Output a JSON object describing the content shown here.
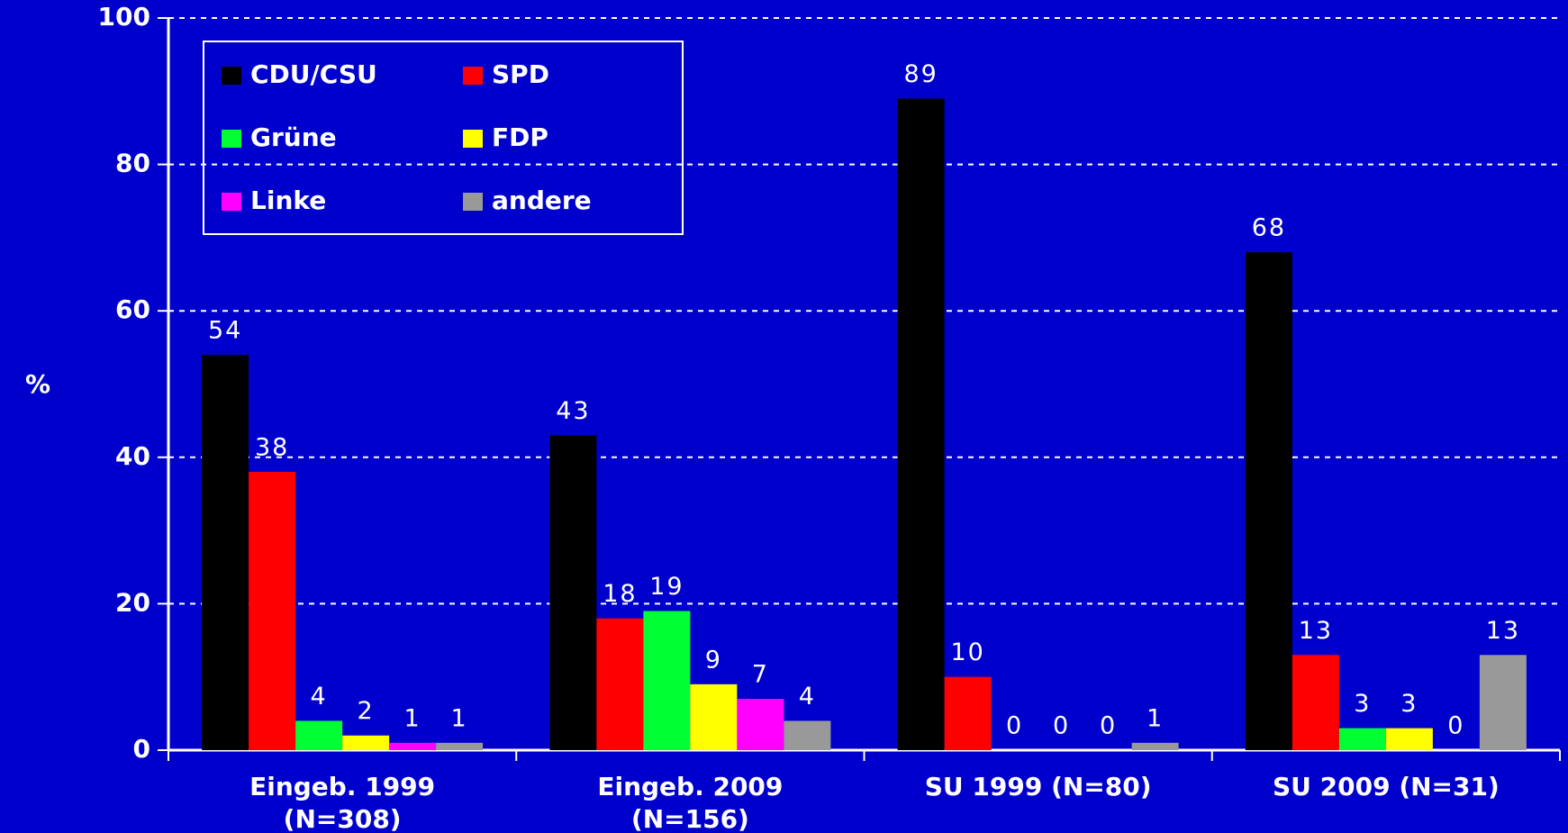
{
  "chart_data": {
    "type": "bar",
    "ylabel": "%",
    "categories": [
      [
        "Eingeb. 1999",
        "(N=308)"
      ],
      [
        "Eingeb. 2009",
        "(N=156)"
      ],
      [
        "SU 1999 (N=80)"
      ],
      [
        "SU 2009 (N=31)"
      ]
    ],
    "series": [
      {
        "name": "CDU/CSU",
        "color": "#000000",
        "values": [
          54,
          43,
          89,
          68
        ]
      },
      {
        "name": "SPD",
        "color": "#ff0000",
        "values": [
          38,
          18,
          10,
          13
        ]
      },
      {
        "name": "Grüne",
        "color": "#00ff33",
        "values": [
          4,
          19,
          0,
          3
        ]
      },
      {
        "name": "FDP",
        "color": "#ffff00",
        "values": [
          2,
          9,
          0,
          3
        ]
      },
      {
        "name": "Linke",
        "color": "#ff00ff",
        "values": [
          1,
          7,
          0,
          0
        ]
      },
      {
        "name": "andere",
        "color": "#999999",
        "values": [
          1,
          4,
          1,
          13
        ]
      }
    ],
    "ylim": [
      0,
      100
    ],
    "yticks": [
      0,
      20,
      40,
      60,
      80,
      100
    ],
    "grid": true,
    "legend": "upper left"
  }
}
